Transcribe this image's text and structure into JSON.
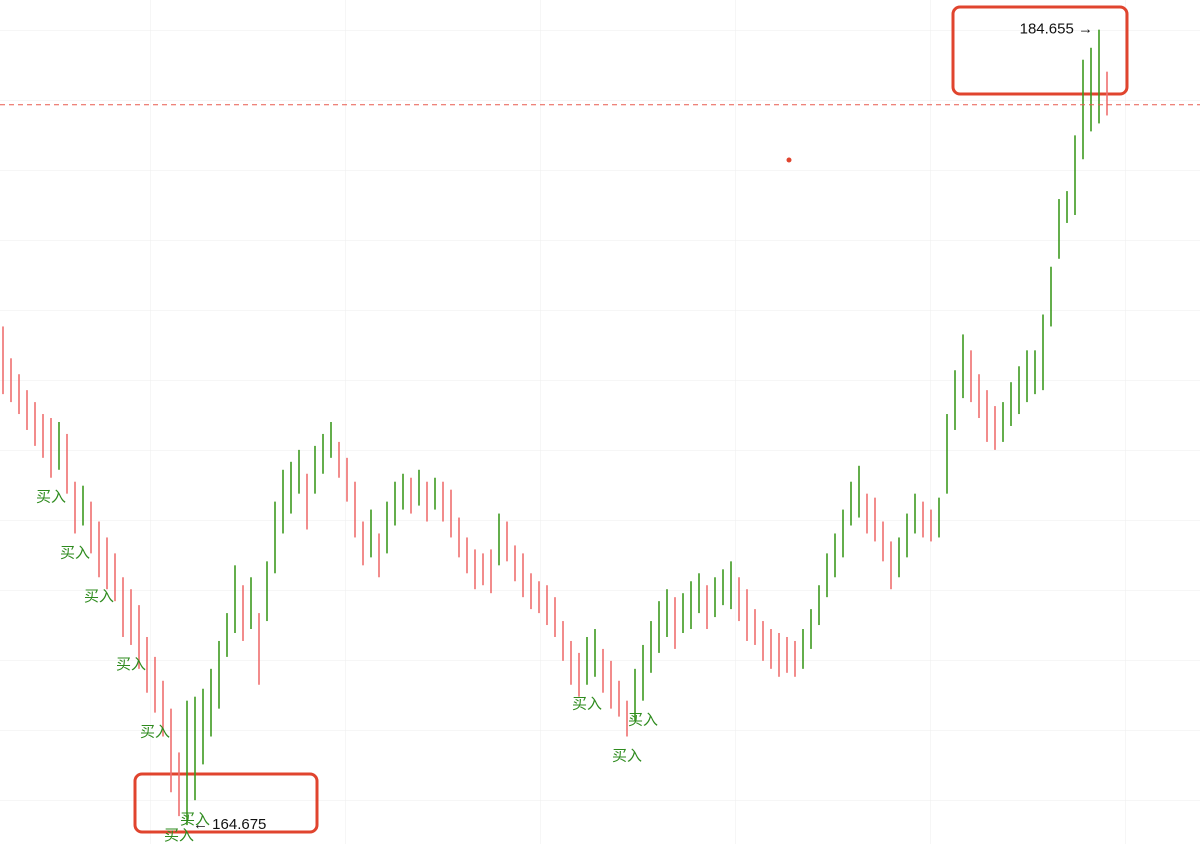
{
  "chart_data": {
    "type": "range-bar",
    "low": [
      175.5,
      175.3,
      175.0,
      174.6,
      174.2,
      173.9,
      173.4,
      173.6,
      173.0,
      172.0,
      172.2,
      171.5,
      170.9,
      170.6,
      170.3,
      169.4,
      169.2,
      168.6,
      168.0,
      167.5,
      166.9,
      165.5,
      164.9,
      164.675,
      165.3,
      166.2,
      166.9,
      167.6,
      168.9,
      169.5,
      169.3,
      169.6,
      168.2,
      169.8,
      171.0,
      172.0,
      172.5,
      173.0,
      172.1,
      173.0,
      173.5,
      173.9,
      173.4,
      172.8,
      171.9,
      171.2,
      171.4,
      170.9,
      171.5,
      172.2,
      172.6,
      172.5,
      172.7,
      172.3,
      172.6,
      172.3,
      171.9,
      171.4,
      171.0,
      170.6,
      170.7,
      170.5,
      171.2,
      171.3,
      170.8,
      170.4,
      170.1,
      170.0,
      169.7,
      169.4,
      168.8,
      168.2,
      167.9,
      168.2,
      168.4,
      168.0,
      167.6,
      167.4,
      166.9,
      167.3,
      167.8,
      168.5,
      169.0,
      169.4,
      169.1,
      169.5,
      169.6,
      170.0,
      169.6,
      169.9,
      170.2,
      170.1,
      169.8,
      169.3,
      169.2,
      168.8,
      168.6,
      168.4,
      168.5,
      168.4,
      168.6,
      169.1,
      169.7,
      170.4,
      170.9,
      171.4,
      172.2,
      172.4,
      172.0,
      171.8,
      171.3,
      170.6,
      170.9,
      171.4,
      172.0,
      171.9,
      171.8,
      171.9,
      173.0,
      174.6,
      175.4,
      175.3,
      174.9,
      174.3,
      174.1,
      174.3,
      174.7,
      175.0,
      175.3,
      175.5,
      175.6,
      177.2,
      178.9,
      179.8,
      180.0,
      181.4,
      182.1,
      182.3,
      182.5
    ],
    "high": [
      177.2,
      176.4,
      176.0,
      175.6,
      175.3,
      175.0,
      174.9,
      174.8,
      174.5,
      173.3,
      173.2,
      172.8,
      172.3,
      171.9,
      171.5,
      170.9,
      170.6,
      170.2,
      169.4,
      168.9,
      168.3,
      167.6,
      166.5,
      167.8,
      167.9,
      168.1,
      168.6,
      169.3,
      170.0,
      171.2,
      170.7,
      170.9,
      170.0,
      171.3,
      172.8,
      173.6,
      173.8,
      174.1,
      173.5,
      174.2,
      174.5,
      174.8,
      174.3,
      173.9,
      173.3,
      172.3,
      172.6,
      172.0,
      172.8,
      173.3,
      173.5,
      173.4,
      173.6,
      173.3,
      173.4,
      173.3,
      173.1,
      172.4,
      171.9,
      171.6,
      171.5,
      171.6,
      172.5,
      172.3,
      171.7,
      171.5,
      171.0,
      170.8,
      170.7,
      170.4,
      169.8,
      169.3,
      169.0,
      169.4,
      169.6,
      169.1,
      168.8,
      168.3,
      167.8,
      168.6,
      169.2,
      169.8,
      170.3,
      170.6,
      170.4,
      170.5,
      170.8,
      171.0,
      170.7,
      170.9,
      171.1,
      171.3,
      170.9,
      170.6,
      170.1,
      169.8,
      169.6,
      169.5,
      169.4,
      169.3,
      169.6,
      170.1,
      170.7,
      171.5,
      172.0,
      172.6,
      173.3,
      173.7,
      173.0,
      172.9,
      172.3,
      171.8,
      171.9,
      172.5,
      173.0,
      172.8,
      172.6,
      172.9,
      175.0,
      176.1,
      177.0,
      176.6,
      176.0,
      175.6,
      175.2,
      175.3,
      175.8,
      176.2,
      176.6,
      176.6,
      177.5,
      178.7,
      180.4,
      180.6,
      182.0,
      183.9,
      184.2,
      184.655,
      183.6
    ],
    "up_color": "#3d9a1f",
    "down_color": "#ef6f6f",
    "ylim": [
      164.2,
      185.4
    ],
    "price_line": 182.77,
    "annotations": [
      {
        "value": 184.655,
        "label": "184.655 →",
        "bar": 137
      },
      {
        "value": 164.675,
        "label": "← 164.675",
        "bar": 23
      }
    ],
    "signals": {
      "label": "买入",
      "color": "#2e8b1e",
      "bars": [
        6,
        9,
        12,
        16,
        19,
        22,
        24,
        73,
        78,
        80
      ]
    }
  }
}
